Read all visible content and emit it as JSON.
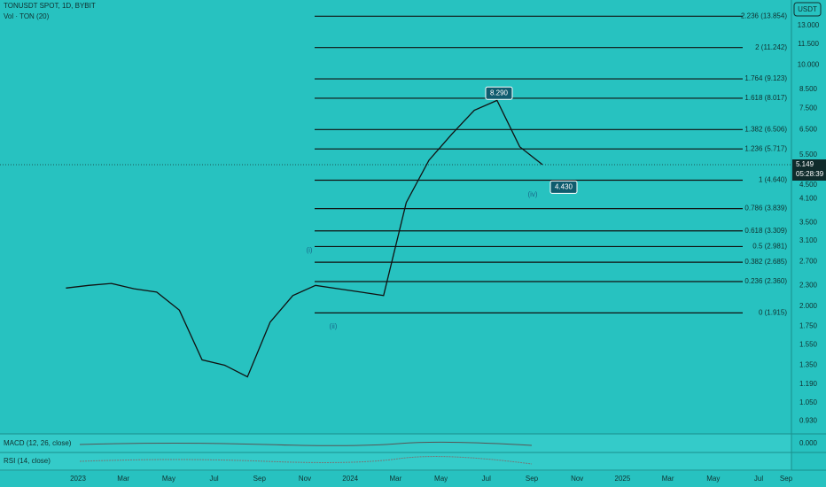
{
  "header": {
    "symbol": "TONUSDT SPOT, 1D, BYBIT",
    "volume": "Vol · TON (20)",
    "currency": "USDT"
  },
  "chart_data": {
    "type": "line",
    "log_scale": true,
    "color": "#111111",
    "x": [
      "2022-12",
      "2023-01",
      "2023-02",
      "2023-03",
      "2023-04",
      "2023-05",
      "2023-06",
      "2023-07",
      "2023-08",
      "2023-09",
      "2023-10",
      "2023-11",
      "2023-12",
      "2024-01",
      "2024-02",
      "2024-03",
      "2024-04",
      "2024-05",
      "2024-06",
      "2024-07",
      "2024-08",
      "2024-09"
    ],
    "values": [
      2.26,
      2.3,
      2.33,
      2.25,
      2.2,
      1.95,
      1.4,
      1.35,
      1.25,
      1.8,
      2.15,
      2.3,
      2.25,
      2.2,
      2.15,
      4.0,
      5.3,
      6.3,
      7.4,
      7.9,
      5.8,
      5.149
    ],
    "ylim": [
      0.9,
      14.6
    ],
    "yticks": [
      {
        "value": 13,
        "label": "13.000"
      },
      {
        "value": 11.5,
        "label": "11.500"
      },
      {
        "value": 10,
        "label": "10.000"
      },
      {
        "value": 8.5,
        "label": "8.500"
      },
      {
        "value": 7.5,
        "label": "7.500"
      },
      {
        "value": 6.5,
        "label": "6.500"
      },
      {
        "value": 5.5,
        "label": "5.500"
      },
      {
        "value": 4.5,
        "label": "4.500"
      },
      {
        "value": 4.1,
        "label": "4.100"
      },
      {
        "value": 3.5,
        "label": "3.500"
      },
      {
        "value": 3.1,
        "label": "3.100"
      },
      {
        "value": 2.7,
        "label": "2.700"
      },
      {
        "value": 2.3,
        "label": "2.300"
      },
      {
        "value": 2,
        "label": "2.000"
      },
      {
        "value": 1.75,
        "label": "1.750"
      },
      {
        "value": 1.55,
        "label": "1.550"
      },
      {
        "value": 1.35,
        "label": "1.350"
      },
      {
        "value": 1.19,
        "label": "1.190"
      },
      {
        "value": 1.05,
        "label": "1.050"
      },
      {
        "value": 0.93,
        "label": "0.930"
      }
    ],
    "time_labels": [
      "2023",
      "Mar",
      "May",
      "Jul",
      "Sep",
      "Nov",
      "2024",
      "Mar",
      "May",
      "Jul",
      "Sep",
      "Nov",
      "2025",
      "Mar",
      "May",
      "Jul",
      "Sep"
    ],
    "fib_levels": [
      {
        "value": 13.854,
        "label": "2.236 (13.854)"
      },
      {
        "value": 11.242,
        "label": "2 (11.242)"
      },
      {
        "value": 9.123,
        "label": "1.764 (9.123)"
      },
      {
        "value": 8.017,
        "label": "1.618 (8.017)"
      },
      {
        "value": 6.506,
        "label": "1.382 (6.506)"
      },
      {
        "value": 5.717,
        "label": "1.236 (5.717)"
      },
      {
        "value": 4.64,
        "label": "1 (4.640)"
      },
      {
        "value": 3.839,
        "label": "0.786 (3.839)"
      },
      {
        "value": 3.309,
        "label": "0.618 (3.309)"
      },
      {
        "value": 2.981,
        "label": "0.5 (2.981)"
      },
      {
        "value": 2.685,
        "label": "0.382 (2.685)"
      },
      {
        "value": 2.36,
        "label": "0.236 (2.360)"
      },
      {
        "value": 1.915,
        "label": "0 (1.915)"
      }
    ],
    "callouts": [
      {
        "value": 8.29,
        "label": "8.290"
      },
      {
        "value": 4.43,
        "label": "4.430"
      }
    ],
    "countdown": "05:28:39",
    "waves": [
      "(i)",
      "(ii)",
      "(iv)"
    ]
  },
  "indicators": {
    "macd": "MACD (12, 26, close)",
    "macd_value": "0.000",
    "rsi": "RSI (14, close)"
  }
}
